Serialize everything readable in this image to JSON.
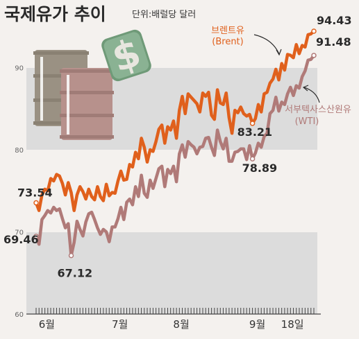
{
  "header": {
    "title": "국제유가 추이",
    "unit": "단위:배럴당 달러"
  },
  "chart_data": {
    "type": "line",
    "title": "국제유가 추이",
    "ylabel": "",
    "unit": "단위:배럴당 달러",
    "ylim": [
      60,
      100
    ],
    "yticks": [
      60,
      70,
      80,
      90
    ],
    "grid": false,
    "month_labels": [
      "6월",
      "7월",
      "8월",
      "9월",
      "18일"
    ],
    "month_start_index": [
      2,
      27,
      48,
      74,
      86
    ],
    "series": [
      {
        "name": "브렌트유",
        "name_sub": "(Brent)",
        "color": "#e0601c",
        "values": [
          73.54,
          72.6,
          74.5,
          75.2,
          75.0,
          76.5,
          76.2,
          77.0,
          76.8,
          75.9,
          74.5,
          76.0,
          74.8,
          72.6,
          74.5,
          75.5,
          74.9,
          74.0,
          75.2,
          74.3,
          73.9,
          75.5,
          74.3,
          73.8,
          75.8,
          74.4,
          74.8,
          74.7,
          76.2,
          77.4,
          76.3,
          76.4,
          78.2,
          77.9,
          79.7,
          78.9,
          81.4,
          80.3,
          78.5,
          80.0,
          79.8,
          81.0,
          82.5,
          83.0,
          80.8,
          82.8,
          82.4,
          83.5,
          81.4,
          84.8,
          86.5,
          84.4,
          86.8,
          86.4,
          86.0,
          85.6,
          84.6,
          86.9,
          86.5,
          87.0,
          84.2,
          83.7,
          87.3,
          85.7,
          85.5,
          86.9,
          83.9,
          82.0,
          84.8,
          84.5,
          85.2,
          84.4,
          84.1,
          84.3,
          83.21,
          83.8,
          85.5,
          84.6,
          86.8,
          87.0,
          88.1,
          88.6,
          89.8,
          88.5,
          90.5,
          89.7,
          91.6,
          91.5,
          91.2,
          92.8,
          91.7,
          92.7,
          92.5,
          94.0,
          94.1,
          94.43
        ],
        "end_label": "94.43",
        "annotations": [
          {
            "index": 0,
            "label": "73.54"
          },
          {
            "index": 74,
            "label": "83.21"
          },
          {
            "index": 95,
            "label": "94.43"
          }
        ]
      },
      {
        "name": "서부텍사스산원유",
        "name_sub": "(WTI)",
        "color": "#b07a78",
        "values": [
          69.46,
          68.5,
          71.5,
          72.0,
          72.6,
          72.3,
          73.0,
          72.6,
          72.8,
          71.6,
          70.5,
          71.0,
          67.12,
          68.7,
          71.3,
          70.3,
          69.5,
          71.2,
          72.2,
          72.4,
          71.5,
          70.5,
          69.7,
          70.3,
          70.0,
          68.8,
          70.6,
          70.6,
          71.6,
          73.0,
          71.5,
          73.6,
          74.0,
          73.3,
          75.5,
          74.3,
          76.9,
          74.7,
          74.2,
          76.3,
          75.3,
          76.5,
          77.7,
          78.0,
          75.5,
          77.6,
          77.1,
          78.0,
          76.1,
          79.5,
          80.6,
          79.1,
          81.0,
          80.6,
          80.3,
          79.5,
          80.3,
          80.4,
          81.4,
          81.5,
          80.3,
          79.3,
          82.4,
          81.0,
          80.1,
          81.4,
          78.6,
          78.6,
          79.7,
          79.8,
          80.1,
          80.1,
          78.8,
          80.5,
          78.89,
          79.6,
          80.8,
          80.3,
          81.6,
          82.0,
          84.4,
          84.8,
          86.4,
          84.7,
          85.8,
          85.5,
          86.8,
          87.6,
          86.6,
          87.8,
          87.5,
          88.9,
          89.6,
          90.9,
          91.0,
          91.48
        ],
        "end_label": "91.48",
        "annotations": [
          {
            "index": 0,
            "label": "69.46"
          },
          {
            "index": 12,
            "label": "67.12"
          },
          {
            "index": 74,
            "label": "78.89"
          },
          {
            "index": 95,
            "label": "91.48"
          }
        ]
      }
    ]
  }
}
